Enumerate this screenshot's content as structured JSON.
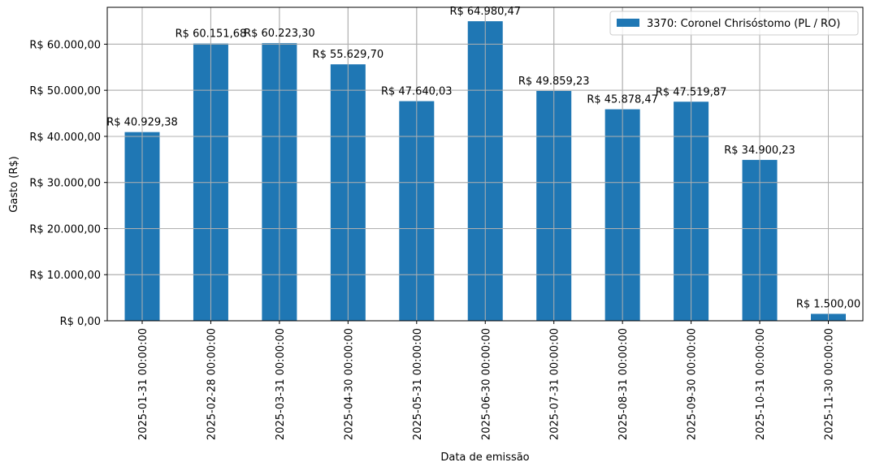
{
  "chart_data": {
    "type": "bar",
    "title": "",
    "xlabel": "Data de emissão",
    "ylabel": "Gasto (R$)",
    "ylim": [
      0,
      68000
    ],
    "grid": true,
    "legend_position": "upper right",
    "categories": [
      "2025-01-31 00:00:00",
      "2025-02-28 00:00:00",
      "2025-03-31 00:00:00",
      "2025-04-30 00:00:00",
      "2025-05-31 00:00:00",
      "2025-06-30 00:00:00",
      "2025-07-31 00:00:00",
      "2025-08-31 00:00:00",
      "2025-09-30 00:00:00",
      "2025-10-31 00:00:00",
      "2025-11-30 00:00:00"
    ],
    "series": [
      {
        "name": "3370: Coronel Chrisóstomo (PL / RO)",
        "color": "#1f77b4",
        "values": [
          40929.38,
          60151.68,
          60223.3,
          55629.7,
          47640.03,
          64980.47,
          49859.23,
          45878.47,
          47519.87,
          34900.23,
          1500.0
        ],
        "labels": [
          "R$ 40.929,38",
          "R$ 60.151,68",
          "R$ 60.223,30",
          "R$ 55.629,70",
          "R$ 47.640,03",
          "R$ 64.980,47",
          "R$ 49.859,23",
          "R$ 45.878,47",
          "R$ 47.519,87",
          "R$ 34.900,23",
          "R$ 1.500,00"
        ]
      }
    ],
    "yticks": [
      {
        "value": 0,
        "label": "R$ 0,00"
      },
      {
        "value": 10000,
        "label": "R$ 10.000,00"
      },
      {
        "value": 20000,
        "label": "R$ 20.000,00"
      },
      {
        "value": 30000,
        "label": "R$ 30.000,00"
      },
      {
        "value": 40000,
        "label": "R$ 40.000,00"
      },
      {
        "value": 50000,
        "label": "R$ 50.000,00"
      },
      {
        "value": 60000,
        "label": "R$ 60.000,00"
      }
    ]
  },
  "colors": {
    "bar": "#1f77b4",
    "grid": "#b0b0b0",
    "axis": "#000000",
    "legend_border": "#cccccc"
  }
}
